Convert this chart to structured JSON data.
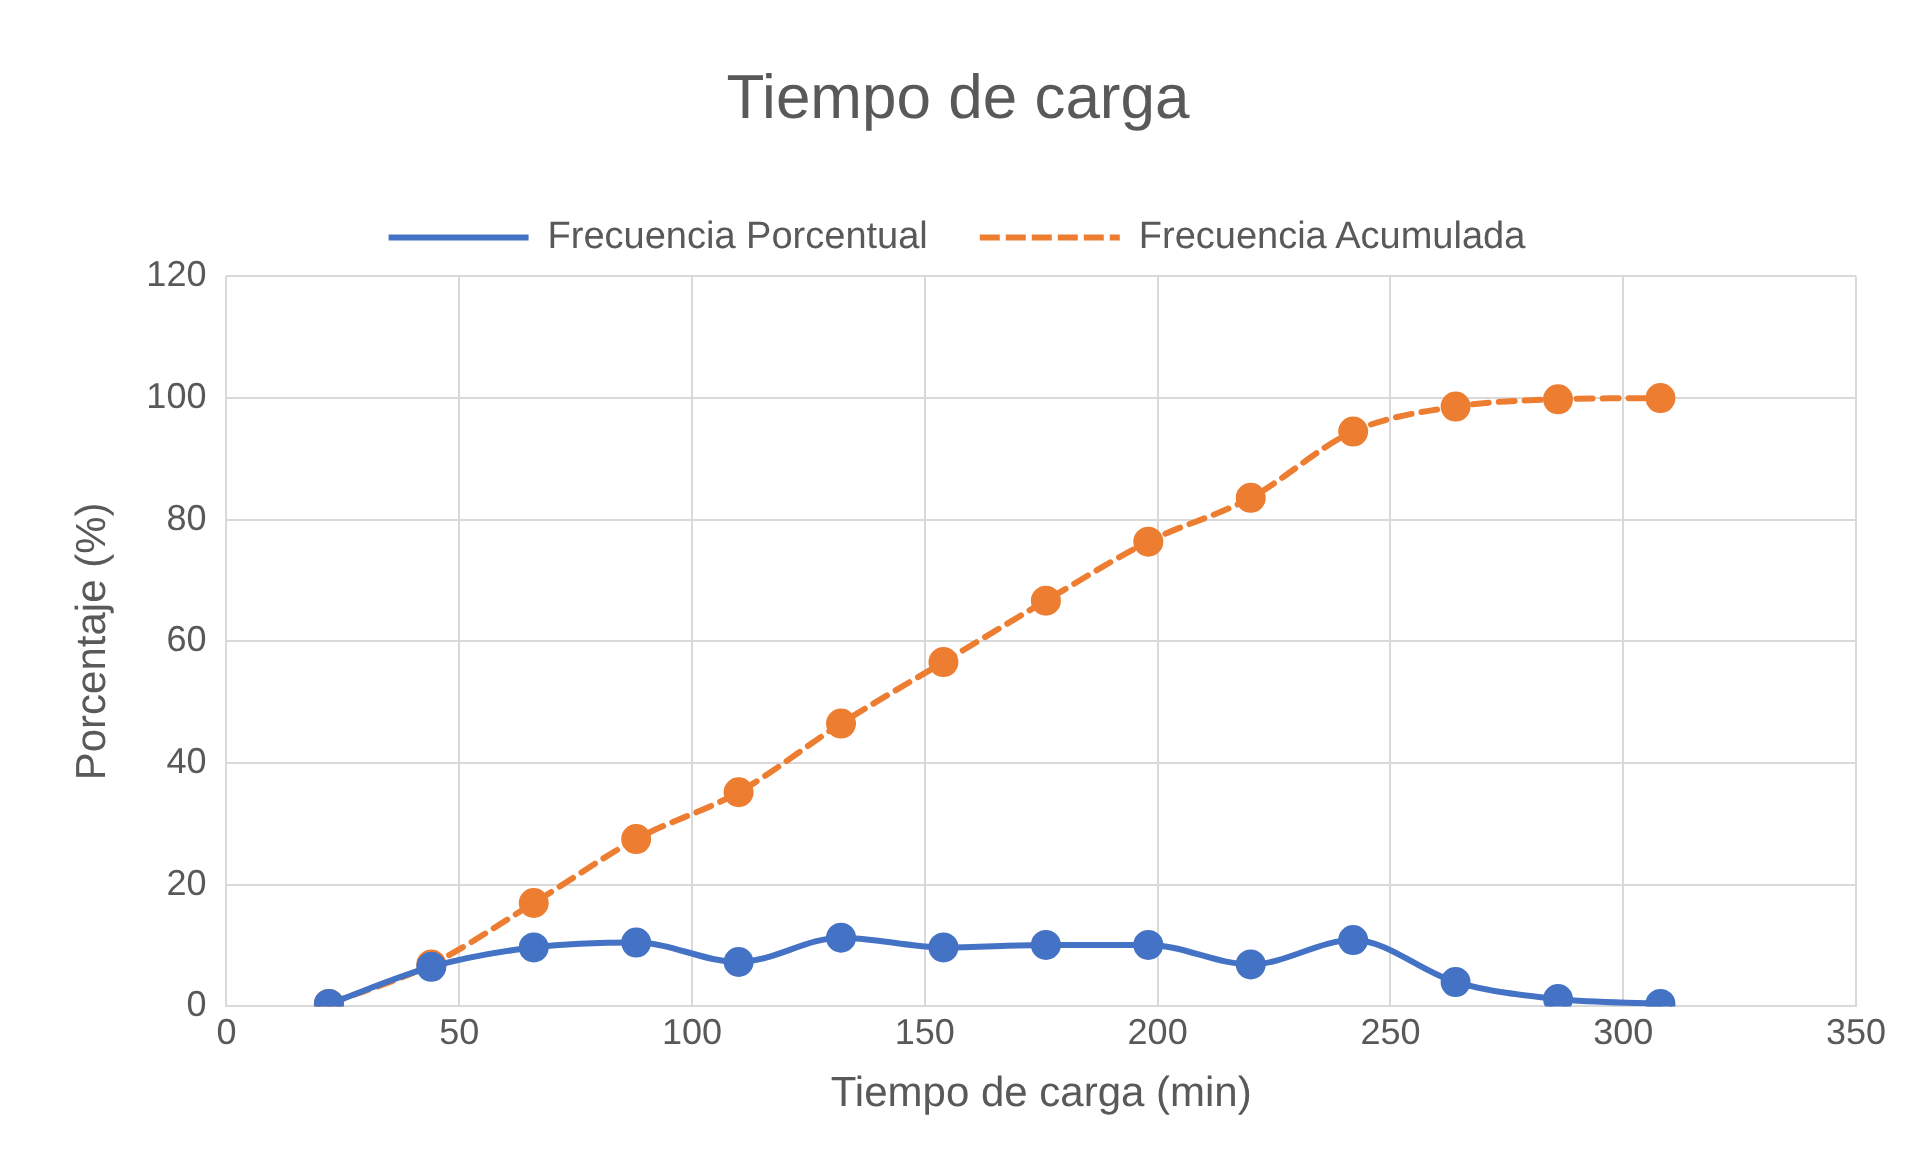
{
  "chart_data": {
    "type": "line",
    "title": "Tiempo de carga",
    "xlabel": "Tiempo de carga (min)",
    "ylabel": "Porcentaje (%)",
    "x": [
      22,
      44,
      66,
      88,
      110,
      132,
      154,
      176,
      198,
      220,
      242,
      264,
      286,
      308
    ],
    "series": [
      {
        "name": "Frecuencia Porcentual",
        "color": "#4472c4",
        "values": [
          0.4,
          6.5,
          9.7,
          10.5,
          7.3,
          11.3,
          9.7,
          10.1,
          10.1,
          6.9,
          10.9,
          4.0,
          1.2,
          0.4
        ],
        "line_style": "solid"
      },
      {
        "name": "Frecuencia Acumulada",
        "color": "#ed7d31",
        "values": [
          0.4,
          6.9,
          17,
          27.5,
          35.2,
          46.5,
          56.6,
          66.7,
          76.4,
          83.6,
          94.5,
          98.6,
          99.8,
          100
        ],
        "line_style": "dashed"
      }
    ],
    "xlim": [
      0,
      350
    ],
    "xticks": [
      0,
      50,
      100,
      150,
      200,
      250,
      300,
      350
    ],
    "ylim": [
      0,
      120
    ],
    "yticks": [
      0,
      20,
      40,
      60,
      80,
      100,
      120
    ],
    "grid": true,
    "legend": "top",
    "marker": "circle"
  }
}
